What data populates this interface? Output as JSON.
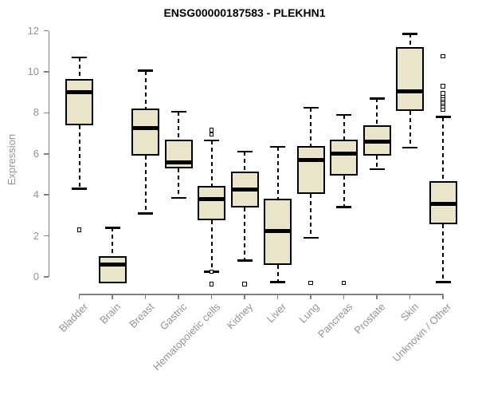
{
  "figure": {
    "title": "ENSG00000187583 - PLEKHN1"
  },
  "chart_data": {
    "type": "boxplot",
    "title": "ENSG00000187583 - PLEKHN1",
    "xlabel": "",
    "ylabel": "Expression",
    "ylim": [
      0,
      12
    ],
    "yticks": [
      0,
      2,
      4,
      6,
      8,
      10,
      12
    ],
    "grid": false,
    "legend": false,
    "categories": [
      "Bladder",
      "Brain",
      "Breast",
      "Gastric",
      "Hematopoietic cells",
      "Kidney",
      "Liver",
      "Lung",
      "Pancreas",
      "Prostate",
      "Skin",
      "Unknown / Other"
    ],
    "boxes": [
      {
        "category": "Bladder",
        "whisker_low": 4.3,
        "q1": 7.4,
        "median": 9.0,
        "q3": 9.65,
        "whisker_high": 10.7,
        "outliers": [
          2.3
        ]
      },
      {
        "category": "Brain",
        "whisker_low": -0.3,
        "q1": -0.3,
        "median": 0.6,
        "q3": 1.0,
        "whisker_high": 2.4,
        "outliers": []
      },
      {
        "category": "Breast",
        "whisker_low": 3.1,
        "q1": 5.9,
        "median": 7.25,
        "q3": 8.2,
        "whisker_high": 10.05,
        "outliers": []
      },
      {
        "category": "Gastric",
        "whisker_low": 3.85,
        "q1": 5.3,
        "median": 5.6,
        "q3": 6.7,
        "whisker_high": 8.05,
        "outliers": []
      },
      {
        "category": "Hematopoietic cells",
        "whisker_low": 0.25,
        "q1": 2.75,
        "median": 3.8,
        "q3": 4.45,
        "whisker_high": 6.65,
        "outliers": [
          7.15,
          6.95,
          0.25,
          -0.35
        ]
      },
      {
        "category": "Kidney",
        "whisker_low": 0.8,
        "q1": 3.4,
        "median": 4.25,
        "q3": 5.15,
        "whisker_high": 6.1,
        "outliers": [
          -0.35
        ]
      },
      {
        "category": "Liver",
        "whisker_low": -0.25,
        "q1": 0.6,
        "median": 2.25,
        "q3": 3.8,
        "whisker_high": 6.35,
        "outliers": []
      },
      {
        "category": "Lung",
        "whisker_low": 1.9,
        "q1": 4.05,
        "median": 5.7,
        "q3": 6.4,
        "whisker_high": 8.25,
        "outliers": [
          -0.3
        ]
      },
      {
        "category": "Pancreas",
        "whisker_low": 3.4,
        "q1": 4.95,
        "median": 6.0,
        "q3": 6.7,
        "whisker_high": 7.9,
        "outliers": [
          -0.3
        ]
      },
      {
        "category": "Prostate",
        "whisker_low": 5.25,
        "q1": 5.9,
        "median": 6.6,
        "q3": 7.4,
        "whisker_high": 8.7,
        "outliers": []
      },
      {
        "category": "Skin",
        "whisker_low": 6.3,
        "q1": 8.1,
        "median": 9.05,
        "q3": 11.2,
        "whisker_high": 11.85,
        "outliers": []
      },
      {
        "category": "Unknown / Other",
        "whisker_low": -0.25,
        "q1": 2.55,
        "median": 3.55,
        "q3": 4.65,
        "whisker_high": 7.8,
        "outliers": [
          10.75,
          9.3,
          8.95,
          8.75,
          8.65,
          8.55,
          8.45,
          8.35,
          8.25,
          8.15
        ]
      }
    ]
  },
  "colors": {
    "box_fill": "#EAE5C9",
    "box_border": "#000000",
    "median": "#000000",
    "whisker": "#000000",
    "outlier": "#000000",
    "axis": "#808080",
    "tick_label": "#8F9699",
    "title": "#000000",
    "background": "#FFFFFF"
  }
}
